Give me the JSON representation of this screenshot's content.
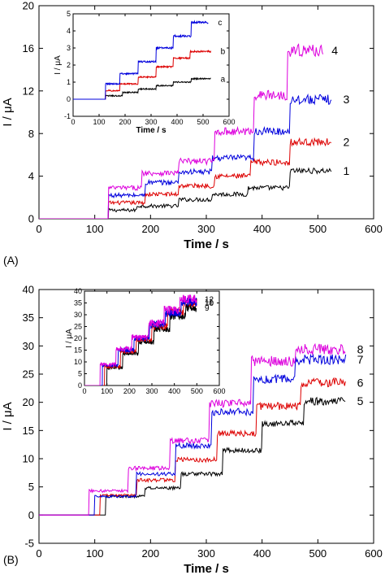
{
  "chart_data": [
    {
      "panel_label": "(A)",
      "type": "line",
      "xlabel": "Time / s",
      "ylabel": "I / μA",
      "xlim": [
        0,
        600
      ],
      "ylim": [
        0,
        20
      ],
      "x_ticks": [
        0,
        100,
        200,
        300,
        400,
        500,
        600
      ],
      "y_ticks": [
        0,
        4,
        8,
        12,
        16,
        20
      ],
      "grid": false,
      "legend": "none",
      "series": [
        {
          "name": "1",
          "color": "#000000",
          "start": 125,
          "end": 525,
          "step_times": [
            125,
            175,
            250,
            310,
            375,
            450
          ],
          "levels": [
            0.3,
            0.8,
            1.2,
            1.8,
            2.3,
            2.9,
            4.5
          ]
        },
        {
          "name": "2",
          "color": "#dd0000",
          "start": 125,
          "end": 525,
          "step_times": [
            125,
            190,
            250,
            315,
            380,
            450
          ],
          "levels": [
            0.8,
            1.5,
            2.3,
            3.1,
            4.0,
            5.3,
            7.2
          ]
        },
        {
          "name": "3",
          "color": "#0000dd",
          "start": 125,
          "end": 525,
          "step_times": [
            125,
            190,
            250,
            310,
            385,
            450
          ],
          "levels": [
            1.1,
            2.2,
            3.4,
            4.4,
            5.7,
            8.2,
            11.2
          ]
        },
        {
          "name": "4",
          "color": "#dd00dd",
          "start": 125,
          "end": 510,
          "step_times": [
            125,
            185,
            250,
            315,
            385,
            445
          ],
          "levels": [
            1.6,
            2.9,
            4.3,
            5.4,
            8.2,
            11.6,
            15.8
          ]
        }
      ],
      "inset": {
        "xlim": [
          0,
          600
        ],
        "ylim": [
          -1,
          5
        ],
        "x_ticks": [
          0,
          100,
          200,
          300,
          400,
          500,
          600
        ],
        "y_ticks": [
          -1,
          0,
          1,
          2,
          3,
          4,
          5
        ],
        "xlabel": "Time / s",
        "ylabel": "I / μA",
        "series": [
          {
            "name": "a",
            "color": "#000000",
            "start": 125,
            "end": 530,
            "step_times": [
              125,
              190,
              250,
              320,
              385,
              455
            ],
            "levels": [
              0.0,
              0.2,
              0.4,
              0.6,
              0.8,
              1.0,
              1.2
            ]
          },
          {
            "name": "b",
            "color": "#dd0000",
            "start": 125,
            "end": 530,
            "step_times": [
              125,
              180,
              250,
              320,
              385,
              450
            ],
            "levels": [
              0.0,
              0.5,
              0.9,
              1.3,
              1.9,
              2.4,
              2.8
            ]
          },
          {
            "name": "c",
            "color": "#0000dd",
            "start": 125,
            "end": 520,
            "step_times": [
              125,
              180,
              250,
              320,
              385,
              455
            ],
            "levels": [
              0.0,
              0.9,
              1.5,
              2.2,
              3.0,
              3.7,
              4.5
            ]
          }
        ]
      }
    },
    {
      "panel_label": "(B)",
      "type": "line",
      "xlabel": "Time / s",
      "ylabel": "I / μA",
      "xlim": [
        0,
        600
      ],
      "ylim": [
        -5,
        40
      ],
      "x_ticks": [
        0,
        100,
        200,
        300,
        400,
        500,
        600
      ],
      "y_ticks": [
        -5,
        0,
        5,
        10,
        15,
        20,
        25,
        30,
        35,
        40
      ],
      "grid": false,
      "legend": "none",
      "series": [
        {
          "name": "5",
          "color": "#000000",
          "start": 120,
          "end": 550,
          "step_times": [
            120,
            190,
            255,
            330,
            400,
            475
          ],
          "levels": [
            0.3,
            3.3,
            4.8,
            7.3,
            11.5,
            16.3,
            20.2
          ]
        },
        {
          "name": "6",
          "color": "#dd0000",
          "start": 110,
          "end": 550,
          "step_times": [
            110,
            175,
            245,
            320,
            390,
            470
          ],
          "levels": [
            1.0,
            3.5,
            6.2,
            9.8,
            14.5,
            19.3,
            23.5
          ]
        },
        {
          "name": "7",
          "color": "#0000dd",
          "start": 100,
          "end": 550,
          "step_times": [
            100,
            175,
            245,
            310,
            385,
            460
          ],
          "levels": [
            1.8,
            3.3,
            7.3,
            12.3,
            18.3,
            24.1,
            27.6
          ]
        },
        {
          "name": "8",
          "color": "#dd00dd",
          "start": 90,
          "end": 550,
          "step_times": [
            90,
            160,
            235,
            305,
            380,
            460
          ],
          "levels": [
            0.6,
            4.3,
            8.3,
            13.2,
            19.8,
            27.3,
            29.4
          ]
        }
      ],
      "inset": {
        "xlim": [
          0,
          600
        ],
        "ylim": [
          0,
          40
        ],
        "x_ticks": [
          0,
          100,
          200,
          300,
          400,
          500,
          600
        ],
        "y_ticks": [
          0,
          5,
          10,
          15,
          20,
          25,
          30,
          35,
          40
        ],
        "xlabel": "",
        "ylabel": "I / μA",
        "series": [
          {
            "name": "9",
            "color": "#000000",
            "start": 100,
            "end": 500,
            "step_times": [
              100,
              170,
              240,
              310,
              380,
              450
            ],
            "levels": [
              2.5,
              7.5,
              13.5,
              18.5,
              24.0,
              29.5,
              33.0
            ]
          },
          {
            "name": "10",
            "color": "#dd0000",
            "start": 90,
            "end": 500,
            "step_times": [
              90,
              160,
              230,
              300,
              370,
              440
            ],
            "levels": [
              2.5,
              8.0,
              14.5,
              19.5,
              25.0,
              31.5,
              35.0
            ]
          },
          {
            "name": "11",
            "color": "#0000dd",
            "start": 80,
            "end": 500,
            "step_times": [
              80,
              150,
              220,
              290,
              360,
              430
            ],
            "levels": [
              3.0,
              8.5,
              15.0,
              20.0,
              26.0,
              31.0,
              35.5
            ]
          },
          {
            "name": "12",
            "color": "#dd00dd",
            "start": 70,
            "end": 500,
            "step_times": [
              70,
              140,
              210,
              285,
              355,
              425
            ],
            "levels": [
              3.0,
              9.0,
              15.5,
              20.5,
              26.5,
              32.0,
              36.5
            ]
          }
        ]
      }
    }
  ]
}
